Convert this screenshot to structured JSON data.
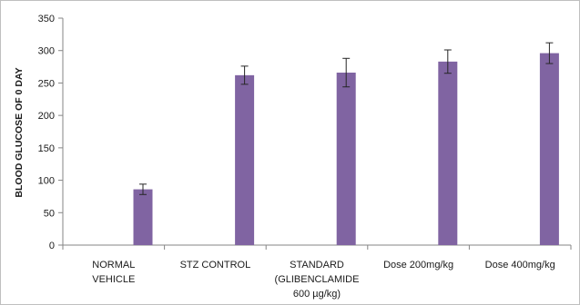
{
  "chart_data": {
    "type": "bar",
    "title": "",
    "xlabel": "",
    "ylabel": "BLOOD GLUCOSE OF 0 DAY",
    "ylim": [
      0,
      350
    ],
    "yticks": [
      0,
      50,
      100,
      150,
      200,
      250,
      300,
      350
    ],
    "grid": false,
    "legend": "none",
    "bar_color": "#8064a2",
    "categories": [
      "NORMAL VEHICLE",
      "STZ CONTROL",
      "STANDARD (GLIBENCLAMIDE 600 µg/kg)",
      "Dose 200mg/kg",
      "Dose 400mg/kg"
    ],
    "category_lines": [
      [
        "NORMAL",
        "VEHICLE"
      ],
      [
        "STZ CONTROL"
      ],
      [
        "STANDARD",
        "(GLIBENCLAMIDE",
        "600 µg/kg)"
      ],
      [
        "Dose 200mg/kg"
      ],
      [
        "Dose 400mg/kg"
      ]
    ],
    "values": [
      86,
      262,
      266,
      283,
      296
    ],
    "errors": [
      8,
      14,
      22,
      18,
      16
    ]
  }
}
